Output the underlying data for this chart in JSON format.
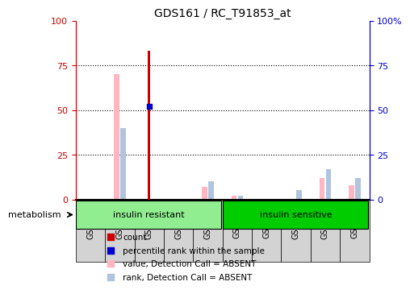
{
  "title": "GDS161 / RC_T91853_at",
  "samples": [
    "GSM2287",
    "GSM2292",
    "GSM2297",
    "GSM2302",
    "GSM2307",
    "GSM2311",
    "GSM2316",
    "GSM2321",
    "GSM2326",
    "GSM2331"
  ],
  "count_values": [
    0,
    0,
    83,
    0,
    0,
    0,
    0,
    0,
    0,
    0
  ],
  "percentile_rank_values": [
    0,
    0,
    52,
    0,
    0,
    0,
    0,
    0,
    0,
    0
  ],
  "value_absent": [
    0,
    70,
    0,
    0,
    7,
    2,
    0,
    0,
    12,
    8
  ],
  "rank_absent": [
    0,
    40,
    0,
    0,
    10,
    2,
    0,
    5,
    17,
    12
  ],
  "groups": [
    {
      "label": "insulin resistant",
      "start": 0,
      "end": 5,
      "color": "#90ee90"
    },
    {
      "label": "insulin sensitive",
      "start": 5,
      "end": 10,
      "color": "#00cc00"
    }
  ],
  "group_label": "metabolism",
  "ylim_left": [
    0,
    100
  ],
  "ylim_right": [
    0,
    100
  ],
  "yticks_left": [
    0,
    25,
    50,
    75,
    100
  ],
  "yticks_right": [
    0,
    25,
    50,
    75,
    100
  ],
  "left_axis_color": "#cc0000",
  "right_axis_color": "#0000cc",
  "count_color": "#cc0000",
  "percentile_color": "#0000cc",
  "value_absent_color": "#ffb6c1",
  "rank_absent_color": "#b0c4de",
  "bar_width": 0.18,
  "dotted_line_color": "black"
}
